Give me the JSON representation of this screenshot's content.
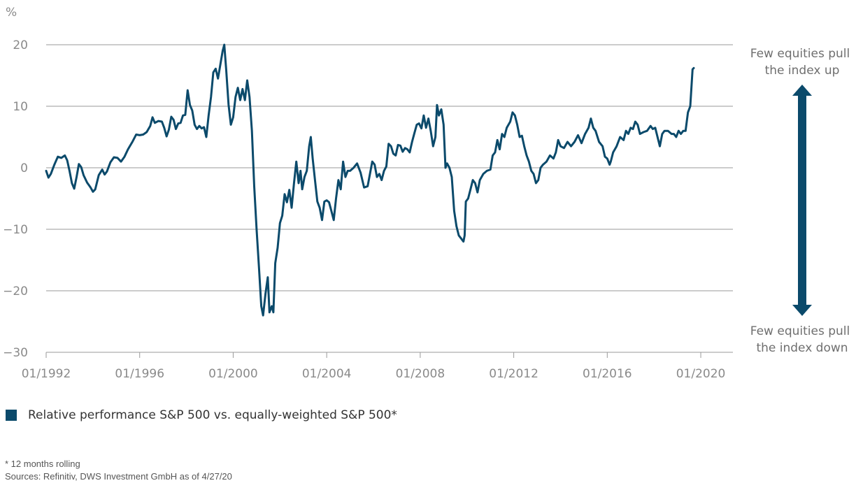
{
  "chart_data": {
    "type": "line",
    "unit_label": "%",
    "ylim": [
      -30,
      20
    ],
    "y_ticks": [
      20,
      10,
      0,
      -10,
      -20,
      -30
    ],
    "y_tick_labels": [
      "20",
      "10",
      "0",
      "−10",
      "−20",
      "−30"
    ],
    "xlim": [
      1992.0,
      2020.2
    ],
    "x_ticks": [
      1992,
      1996,
      2000,
      2004,
      2008,
      2012,
      2016,
      2020
    ],
    "x_tick_labels": [
      "01/1992",
      "01/1996",
      "01/2000",
      "01/2004",
      "01/2008",
      "01/2012",
      "01/2016",
      "01/2020"
    ],
    "grid": "horizontal",
    "line_color": "#0b4a6b",
    "legend_position": "bottom-left",
    "series": [
      {
        "name": "Relative performance S&P 500 vs. equally-weighted S&P 500*",
        "points": [
          [
            1992.0,
            -0.5
          ],
          [
            1992.1,
            -1.6
          ],
          [
            1992.2,
            -1.0
          ],
          [
            1992.35,
            0.5
          ],
          [
            1992.5,
            1.8
          ],
          [
            1992.65,
            1.6
          ],
          [
            1992.8,
            2.0
          ],
          [
            1992.9,
            1.2
          ],
          [
            1993.0,
            -0.5
          ],
          [
            1993.1,
            -2.5
          ],
          [
            1993.2,
            -3.4
          ],
          [
            1993.3,
            -1.5
          ],
          [
            1993.4,
            0.6
          ],
          [
            1993.5,
            0.1
          ],
          [
            1993.6,
            -1.2
          ],
          [
            1993.75,
            -2.4
          ],
          [
            1993.9,
            -3.2
          ],
          [
            1994.0,
            -3.9
          ],
          [
            1994.1,
            -3.5
          ],
          [
            1994.25,
            -1.2
          ],
          [
            1994.4,
            -0.3
          ],
          [
            1994.5,
            -1.1
          ],
          [
            1994.6,
            -0.6
          ],
          [
            1994.75,
            0.9
          ],
          [
            1994.9,
            1.7
          ],
          [
            1995.05,
            1.6
          ],
          [
            1995.2,
            1.0
          ],
          [
            1995.35,
            1.8
          ],
          [
            1995.5,
            3.0
          ],
          [
            1995.7,
            4.3
          ],
          [
            1995.85,
            5.4
          ],
          [
            1996.0,
            5.3
          ],
          [
            1996.15,
            5.4
          ],
          [
            1996.3,
            5.8
          ],
          [
            1996.45,
            6.8
          ],
          [
            1996.55,
            8.2
          ],
          [
            1996.65,
            7.3
          ],
          [
            1996.8,
            7.6
          ],
          [
            1996.95,
            7.5
          ],
          [
            1997.05,
            6.5
          ],
          [
            1997.15,
            5.1
          ],
          [
            1997.25,
            6.2
          ],
          [
            1997.35,
            8.3
          ],
          [
            1997.45,
            7.8
          ],
          [
            1997.55,
            6.3
          ],
          [
            1997.65,
            7.2
          ],
          [
            1997.75,
            7.3
          ],
          [
            1997.85,
            8.5
          ],
          [
            1997.95,
            8.6
          ],
          [
            1998.05,
            12.6
          ],
          [
            1998.15,
            10.2
          ],
          [
            1998.25,
            9.3
          ],
          [
            1998.35,
            7.0
          ],
          [
            1998.45,
            6.3
          ],
          [
            1998.55,
            6.8
          ],
          [
            1998.65,
            6.4
          ],
          [
            1998.75,
            6.6
          ],
          [
            1998.85,
            5.0
          ],
          [
            1998.95,
            8.5
          ],
          [
            1999.05,
            11.5
          ],
          [
            1999.15,
            15.5
          ],
          [
            1999.25,
            16.1
          ],
          [
            1999.35,
            14.5
          ],
          [
            1999.45,
            16.8
          ],
          [
            1999.55,
            19.0
          ],
          [
            1999.62,
            20.0
          ],
          [
            1999.7,
            16.0
          ],
          [
            1999.8,
            10.3
          ],
          [
            1999.9,
            7.0
          ],
          [
            2000.0,
            8.2
          ],
          [
            2000.1,
            11.5
          ],
          [
            2000.2,
            13.0
          ],
          [
            2000.3,
            11.0
          ],
          [
            2000.4,
            12.8
          ],
          [
            2000.5,
            11.0
          ],
          [
            2000.6,
            14.2
          ],
          [
            2000.7,
            11.5
          ],
          [
            2000.8,
            6.0
          ],
          [
            2000.9,
            -3.0
          ],
          [
            2001.0,
            -10.0
          ],
          [
            2001.1,
            -16.0
          ],
          [
            2001.2,
            -22.5
          ],
          [
            2001.28,
            -24.0
          ],
          [
            2001.38,
            -20.5
          ],
          [
            2001.48,
            -17.8
          ],
          [
            2001.55,
            -23.5
          ],
          [
            2001.65,
            -22.5
          ],
          [
            2001.72,
            -23.5
          ],
          [
            2001.8,
            -15.5
          ],
          [
            2001.9,
            -13.0
          ],
          [
            2002.0,
            -9.0
          ],
          [
            2002.1,
            -7.8
          ],
          [
            2002.2,
            -4.3
          ],
          [
            2002.3,
            -5.6
          ],
          [
            2002.4,
            -3.6
          ],
          [
            2002.5,
            -6.5
          ],
          [
            2002.6,
            -2.5
          ],
          [
            2002.7,
            1.0
          ],
          [
            2002.8,
            -2.5
          ],
          [
            2002.88,
            -0.5
          ],
          [
            2002.95,
            -3.5
          ],
          [
            2003.05,
            -1.5
          ],
          [
            2003.15,
            -0.5
          ],
          [
            2003.25,
            3.5
          ],
          [
            2003.32,
            5.0
          ],
          [
            2003.4,
            1.5
          ],
          [
            2003.5,
            -2.0
          ],
          [
            2003.6,
            -5.5
          ],
          [
            2003.7,
            -6.5
          ],
          [
            2003.8,
            -8.5
          ],
          [
            2003.9,
            -5.5
          ],
          [
            2004.0,
            -5.3
          ],
          [
            2004.1,
            -5.6
          ],
          [
            2004.2,
            -7.0
          ],
          [
            2004.3,
            -8.5
          ],
          [
            2004.4,
            -5.0
          ],
          [
            2004.5,
            -2.0
          ],
          [
            2004.6,
            -3.5
          ],
          [
            2004.7,
            1.0
          ],
          [
            2004.8,
            -1.5
          ],
          [
            2004.9,
            -0.5
          ],
          [
            2005.0,
            -0.5
          ],
          [
            2005.15,
            0.0
          ],
          [
            2005.3,
            0.7
          ],
          [
            2005.45,
            -0.8
          ],
          [
            2005.6,
            -3.2
          ],
          [
            2005.75,
            -3.0
          ],
          [
            2005.85,
            -1.0
          ],
          [
            2005.95,
            1.0
          ],
          [
            2006.05,
            0.5
          ],
          [
            2006.15,
            -1.5
          ],
          [
            2006.25,
            -1.0
          ],
          [
            2006.35,
            -2.0
          ],
          [
            2006.45,
            -0.5
          ],
          [
            2006.55,
            0.2
          ],
          [
            2006.65,
            3.9
          ],
          [
            2006.75,
            3.5
          ],
          [
            2006.85,
            2.3
          ],
          [
            2006.95,
            2.0
          ],
          [
            2007.05,
            3.7
          ],
          [
            2007.15,
            3.6
          ],
          [
            2007.25,
            2.6
          ],
          [
            2007.35,
            3.2
          ],
          [
            2007.45,
            3.0
          ],
          [
            2007.55,
            2.5
          ],
          [
            2007.65,
            4.2
          ],
          [
            2007.75,
            5.6
          ],
          [
            2007.85,
            7.0
          ],
          [
            2007.95,
            7.2
          ],
          [
            2008.05,
            6.4
          ],
          [
            2008.15,
            8.5
          ],
          [
            2008.25,
            6.5
          ],
          [
            2008.35,
            8.0
          ],
          [
            2008.45,
            6.0
          ],
          [
            2008.55,
            3.5
          ],
          [
            2008.65,
            5.0
          ],
          [
            2008.72,
            10.2
          ],
          [
            2008.8,
            8.5
          ],
          [
            2008.9,
            9.5
          ],
          [
            2009.0,
            7.0
          ],
          [
            2009.08,
            0.0
          ],
          [
            2009.15,
            0.7
          ],
          [
            2009.25,
            0.0
          ],
          [
            2009.35,
            -1.5
          ],
          [
            2009.45,
            -7.0
          ],
          [
            2009.55,
            -9.5
          ],
          [
            2009.65,
            -11.0
          ],
          [
            2009.75,
            -11.5
          ],
          [
            2009.85,
            -12.0
          ],
          [
            2009.9,
            -11.0
          ],
          [
            2009.95,
            -5.5
          ],
          [
            2010.05,
            -5.0
          ],
          [
            2010.15,
            -3.5
          ],
          [
            2010.25,
            -2.0
          ],
          [
            2010.35,
            -2.5
          ],
          [
            2010.45,
            -4.0
          ],
          [
            2010.55,
            -2.0
          ],
          [
            2010.7,
            -1.0
          ],
          [
            2010.85,
            -0.5
          ],
          [
            2011.0,
            -0.3
          ],
          [
            2011.1,
            2.0
          ],
          [
            2011.2,
            2.5
          ],
          [
            2011.3,
            4.5
          ],
          [
            2011.4,
            3.0
          ],
          [
            2011.5,
            5.5
          ],
          [
            2011.6,
            5.0
          ],
          [
            2011.7,
            6.5
          ],
          [
            2011.85,
            7.5
          ],
          [
            2011.95,
            9.0
          ],
          [
            2012.05,
            8.5
          ],
          [
            2012.15,
            7.0
          ],
          [
            2012.25,
            5.0
          ],
          [
            2012.35,
            5.2
          ],
          [
            2012.45,
            3.5
          ],
          [
            2012.55,
            2.0
          ],
          [
            2012.65,
            1.0
          ],
          [
            2012.75,
            -0.5
          ],
          [
            2012.85,
            -1.0
          ],
          [
            2012.95,
            -2.5
          ],
          [
            2013.05,
            -2.0
          ],
          [
            2013.15,
            0.0
          ],
          [
            2013.25,
            0.5
          ],
          [
            2013.4,
            1.0
          ],
          [
            2013.55,
            2.0
          ],
          [
            2013.7,
            1.5
          ],
          [
            2013.8,
            2.5
          ],
          [
            2013.9,
            4.5
          ],
          [
            2014.0,
            3.5
          ],
          [
            2014.15,
            3.2
          ],
          [
            2014.3,
            4.2
          ],
          [
            2014.45,
            3.5
          ],
          [
            2014.6,
            4.2
          ],
          [
            2014.75,
            5.3
          ],
          [
            2014.9,
            4.0
          ],
          [
            2015.05,
            5.5
          ],
          [
            2015.2,
            6.5
          ],
          [
            2015.3,
            8.0
          ],
          [
            2015.4,
            6.5
          ],
          [
            2015.5,
            6.0
          ],
          [
            2015.65,
            4.2
          ],
          [
            2015.8,
            3.5
          ],
          [
            2015.9,
            1.8
          ],
          [
            2016.0,
            1.5
          ],
          [
            2016.1,
            0.5
          ],
          [
            2016.15,
            1.0
          ],
          [
            2016.25,
            2.5
          ],
          [
            2016.4,
            3.5
          ],
          [
            2016.55,
            5.0
          ],
          [
            2016.7,
            4.5
          ],
          [
            2016.8,
            6.0
          ],
          [
            2016.9,
            5.5
          ],
          [
            2017.0,
            6.5
          ],
          [
            2017.1,
            6.3
          ],
          [
            2017.2,
            7.5
          ],
          [
            2017.3,
            7.0
          ],
          [
            2017.4,
            5.5
          ],
          [
            2017.55,
            5.8
          ],
          [
            2017.7,
            6.0
          ],
          [
            2017.85,
            6.8
          ],
          [
            2017.95,
            6.3
          ],
          [
            2018.05,
            6.5
          ],
          [
            2018.15,
            5.0
          ],
          [
            2018.25,
            3.5
          ],
          [
            2018.35,
            5.5
          ],
          [
            2018.45,
            6.0
          ],
          [
            2018.6,
            6.0
          ],
          [
            2018.75,
            5.5
          ],
          [
            2018.85,
            5.5
          ],
          [
            2018.95,
            5.0
          ],
          [
            2019.05,
            6.0
          ],
          [
            2019.15,
            5.5
          ],
          [
            2019.25,
            6.0
          ],
          [
            2019.35,
            6.0
          ],
          [
            2019.45,
            9.0
          ],
          [
            2019.55,
            10.0
          ],
          [
            2019.65,
            16.0
          ],
          [
            2019.7,
            16.2
          ]
        ]
      }
    ],
    "annotations": {
      "top": [
        "Few equities pull",
        "the index up"
      ],
      "bottom": [
        "Few equities pull",
        "the index down"
      ]
    }
  },
  "footnotes": {
    "note": "* 12 months rolling",
    "sources": "Sources: Refinitiv, DWS Investment GmbH as of 4/27/20"
  }
}
